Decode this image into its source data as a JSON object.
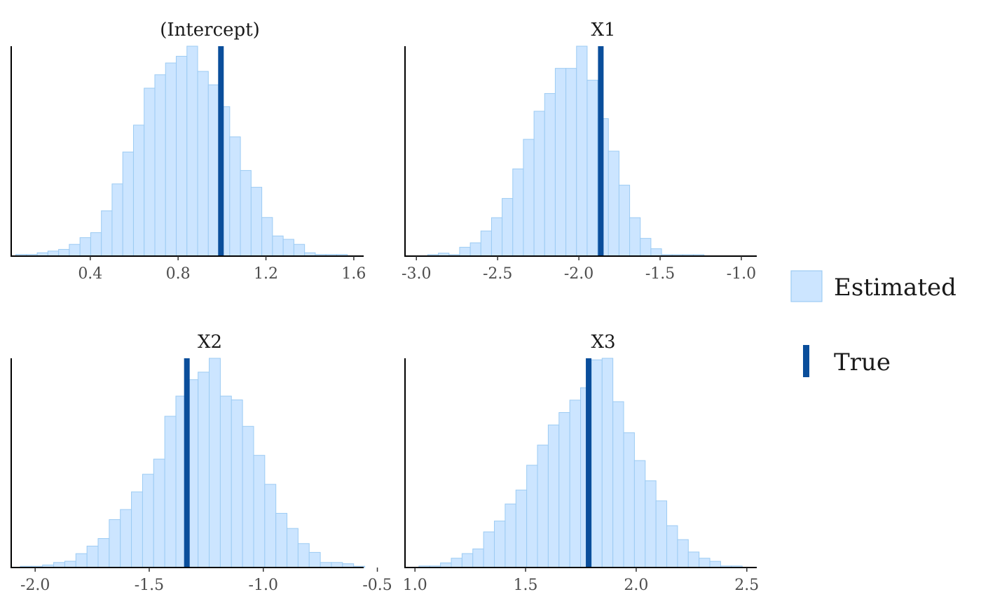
{
  "colors": {
    "estimated_fill": "#cce5ff",
    "estimated_border": "#9ccbf3",
    "true_line": "#0a4e9b",
    "axis": "#000000",
    "tick_label": "#4d4d4d"
  },
  "legend": {
    "placement": "right",
    "estimated_label": "Estimated",
    "true_label": "True"
  },
  "chart_data": [
    {
      "type": "histogram",
      "title": "(Intercept)",
      "xlim": [
        0.04,
        1.645
      ],
      "x_ticks": [
        0.4,
        0.8,
        1.2,
        1.6
      ],
      "x_tick_labels": [
        "0.4",
        "0.8",
        "1.2",
        "1.6"
      ],
      "bin_start": 0.061,
      "bin_width": 0.0487,
      "counts": [
        1,
        1,
        2,
        3,
        4,
        7,
        11,
        14,
        27,
        43,
        62,
        78,
        100,
        108,
        115,
        119,
        125,
        110,
        102,
        89,
        71,
        51,
        41,
        23,
        12,
        10,
        7,
        2,
        1,
        1,
        1
      ],
      "true_value": 0.995
    },
    {
      "type": "histogram",
      "title": "X1",
      "xlim": [
        -3.07,
        -0.905
      ],
      "x_ticks": [
        -3.0,
        -2.5,
        -2.0,
        -1.5,
        -1.0
      ],
      "x_tick_labels": [
        "-3.0",
        "-2.5",
        "-2.0",
        "-1.5",
        "-1.0"
      ],
      "bin_start": -2.93,
      "bin_width": 0.0654,
      "counts": [
        1,
        2,
        1,
        6,
        9,
        17,
        26,
        39,
        59,
        79,
        98,
        110,
        127,
        127,
        142,
        119,
        93,
        71,
        48,
        26,
        12,
        5,
        1,
        1,
        1,
        1
      ],
      "true_value": -1.865
    },
    {
      "type": "histogram",
      "title": "X2",
      "xlim": [
        -2.105,
        -0.56
      ],
      "x_ticks": [
        -2.0,
        -1.5,
        -1.0,
        -0.5
      ],
      "x_tick_labels": [
        "-2.0",
        "-1.5",
        "-1.0",
        "-0.5"
      ],
      "bin_start": -2.065,
      "bin_width": 0.0487,
      "counts": [
        1,
        1,
        2,
        4,
        5,
        11,
        17,
        23,
        38,
        46,
        60,
        74,
        86,
        120,
        136,
        149,
        155,
        166,
        136,
        133,
        112,
        89,
        66,
        43,
        31,
        19,
        12,
        4,
        4,
        3,
        1
      ],
      "true_value": -1.335
    },
    {
      "type": "histogram",
      "title": "X3",
      "xlim": [
        0.955,
        2.545
      ],
      "x_ticks": [
        1.0,
        1.5,
        2.0,
        2.5
      ],
      "x_tick_labels": [
        "1.0",
        "1.5",
        "2.0",
        "2.5"
      ],
      "bin_start": 1.018,
      "bin_width": 0.0487,
      "counts": [
        1,
        1,
        3,
        6,
        9,
        12,
        23,
        30,
        41,
        50,
        66,
        79,
        92,
        100,
        108,
        116,
        134,
        135,
        107,
        87,
        69,
        56,
        43,
        27,
        18,
        10,
        6,
        4,
        1,
        1
      ],
      "true_value": 1.785
    }
  ]
}
